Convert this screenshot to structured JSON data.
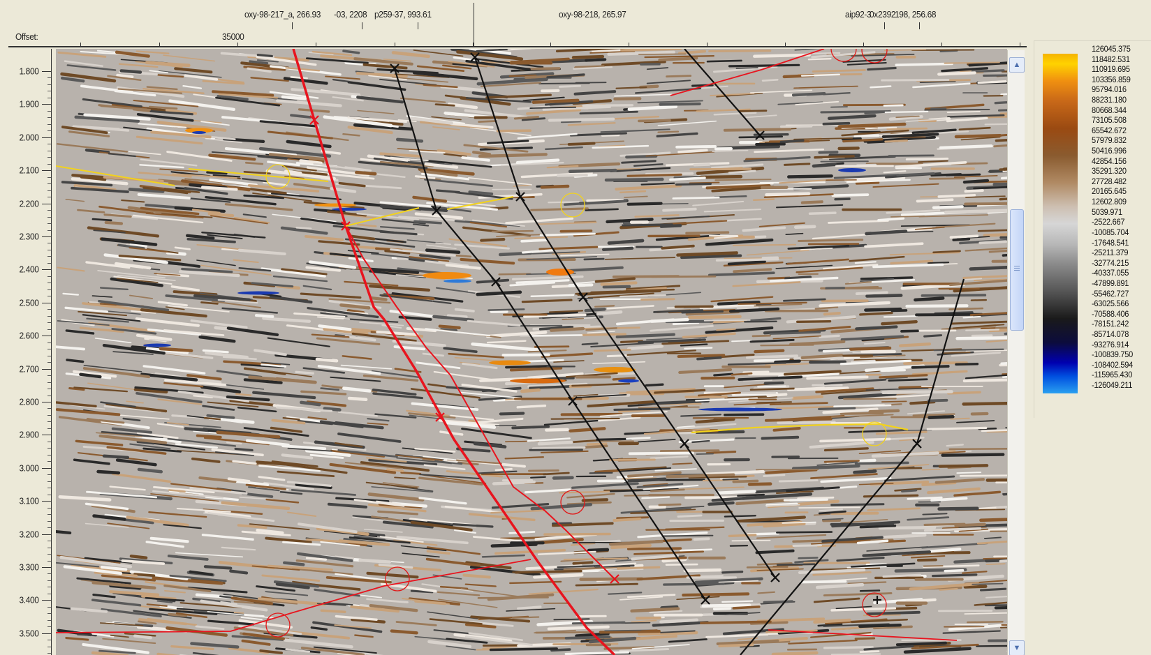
{
  "header": {
    "offset_label": "Offset:",
    "offset_value": "35000",
    "wells": [
      {
        "label": "oxy-98-217_a, 266.93",
        "x": 350
      },
      {
        "label": "-03, 2208",
        "x": 478
      },
      {
        "label": "p259-37, 993.61",
        "x": 536
      },
      {
        "label": "oxy-98-218, 265.97",
        "x": 800
      },
      {
        "label": "aip92-3",
        "x": 1210
      },
      {
        "label": "0x",
        "x": 1245
      },
      {
        "label": "2392",
        "x": 1257
      },
      {
        "label": "198, 256.68",
        "x": 1281
      }
    ]
  },
  "time_axis": {
    "ticks": [
      "1.800",
      "1.900",
      "2.000",
      "2.100",
      "2.200",
      "2.300",
      "2.400",
      "2.500",
      "2.600",
      "2.700",
      "2.800",
      "2.900",
      "3.000",
      "3.100",
      "3.200",
      "3.300",
      "3.400",
      "3.500"
    ]
  },
  "legend": {
    "values": [
      "126045.375",
      "118482.531",
      "110919.695",
      "103356.859",
      "95794.016",
      "88231.180",
      "80668.344",
      "73105.508",
      "65542.672",
      "57979.832",
      "50416.996",
      "42854.156",
      "35291.320",
      "27728.482",
      "20165.645",
      "12602.809",
      "5039.971",
      "-2522.667",
      "-10085.704",
      "-17648.541",
      "-25211.379",
      "-32774.215",
      "-40337.055",
      "-47899.891",
      "-55462.727",
      "-63025.566",
      "-70588.406",
      "-78151.242",
      "-85714.078",
      "-93276.914",
      "-100839.750",
      "-108402.594",
      "-115965.430",
      "-126049.211"
    ]
  },
  "colors": {
    "fault_red": "#e8141e",
    "fault_black": "#111111",
    "horizon_yellow": "#f2d21c",
    "circle_red": "#e01818",
    "circle_yellow": "#f2d21c"
  },
  "scrollbar": {
    "up_icon": "▲",
    "down_icon": "▼"
  }
}
